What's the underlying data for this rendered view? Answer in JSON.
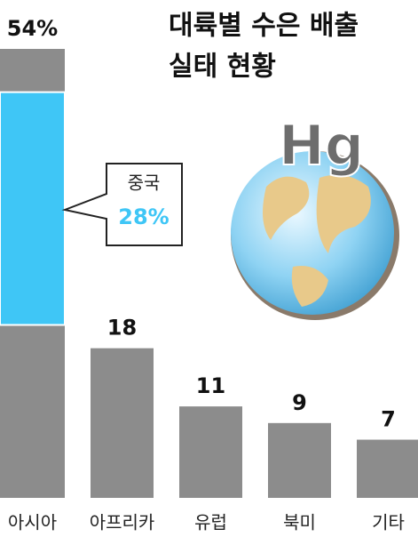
{
  "chart_data": {
    "type": "bar",
    "title": [
      "대륙별 수은 배출",
      "실태 현황"
    ],
    "globe_label": "Hg",
    "categories": [
      "아시아",
      "아프리카",
      "유럽",
      "북미",
      "기타"
    ],
    "values": [
      54,
      18,
      11,
      9,
      7
    ],
    "value_labels": [
      "54%",
      "18",
      "11",
      "9",
      "7"
    ],
    "color": "#8c8c8c",
    "highlight": {
      "category_index": 0,
      "label": "중국",
      "value": 28,
      "value_label": "28%",
      "color": "#3fc6f6"
    }
  }
}
